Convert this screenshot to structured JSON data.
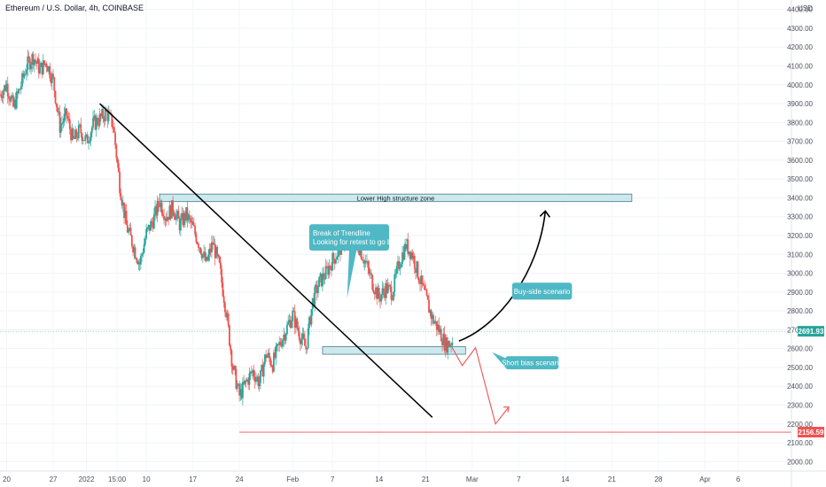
{
  "chart_data": {
    "type": "candlestick",
    "title": "Ethereum / U.S. Dollar, 4h, COINBASE",
    "currency_label": "USD",
    "ylim": [
      1950,
      4450
    ],
    "y_ticks": [
      2000,
      2100,
      2200,
      2300,
      2400,
      2500,
      2600,
      2700,
      2800,
      2900,
      3000,
      3100,
      3200,
      3300,
      3400,
      3500,
      3600,
      3700,
      3800,
      3900,
      4000,
      4100,
      4200,
      4300,
      4400
    ],
    "y_tick_labels": [
      "2000.00",
      "2100.00",
      "2200.00",
      "2300.00",
      "2400.00",
      "2500.00",
      "2600.00",
      "2700.00",
      "2800.00",
      "2900.00",
      "3000.00",
      "3100.00",
      "3200.00",
      "3300.00",
      "3400.00",
      "3500.00",
      "3600.00",
      "3700.00",
      "3800.00",
      "3900.00",
      "4000.00",
      "4100.00",
      "4200.00",
      "4300.00",
      "4400.00"
    ],
    "x_range_days": [
      -13,
      106
    ],
    "x_ticks": [
      {
        "day": -12,
        "label": "20"
      },
      {
        "day": -5,
        "label": "27"
      },
      {
        "day": 0,
        "label": "2022"
      },
      {
        "day": 4.6,
        "label": "15:00"
      },
      {
        "day": 9,
        "label": "10"
      },
      {
        "day": 16,
        "label": "17"
      },
      {
        "day": 23,
        "label": "24"
      },
      {
        "day": 31,
        "label": "Feb"
      },
      {
        "day": 37,
        "label": "7"
      },
      {
        "day": 44,
        "label": "14"
      },
      {
        "day": 51,
        "label": "21"
      },
      {
        "day": 58,
        "label": "Mar"
      },
      {
        "day": 65,
        "label": "7"
      },
      {
        "day": 72,
        "label": "14"
      },
      {
        "day": 79,
        "label": "21"
      },
      {
        "day": 86,
        "label": "28"
      },
      {
        "day": 93,
        "label": "Apr"
      },
      {
        "day": 98,
        "label": "6"
      }
    ],
    "price_path": [
      [
        -13,
        3950
      ],
      [
        -12,
        4000
      ],
      [
        -11,
        3880
      ],
      [
        -10,
        3980
      ],
      [
        -9,
        4100
      ],
      [
        -8,
        4150
      ],
      [
        -7,
        4080
      ],
      [
        -6,
        4120
      ],
      [
        -5,
        4020
      ],
      [
        -4,
        3780
      ],
      [
        -3,
        3840
      ],
      [
        -2,
        3700
      ],
      [
        -1,
        3760
      ],
      [
        0,
        3700
      ],
      [
        1,
        3790
      ],
      [
        2,
        3820
      ],
      [
        3,
        3850
      ],
      [
        4,
        3790
      ],
      [
        5,
        3470
      ],
      [
        6,
        3250
      ],
      [
        7,
        3150
      ],
      [
        8,
        3050
      ],
      [
        9,
        3210
      ],
      [
        10,
        3280
      ],
      [
        11,
        3380
      ],
      [
        12,
        3300
      ],
      [
        13,
        3350
      ],
      [
        14,
        3260
      ],
      [
        15,
        3310
      ],
      [
        16,
        3240
      ],
      [
        17,
        3150
      ],
      [
        18,
        3050
      ],
      [
        19,
        3160
      ],
      [
        20,
        3030
      ],
      [
        21,
        2800
      ],
      [
        22,
        2500
      ],
      [
        23,
        2350
      ],
      [
        24,
        2420
      ],
      [
        25,
        2480
      ],
      [
        26,
        2420
      ],
      [
        27,
        2570
      ],
      [
        28,
        2520
      ],
      [
        29,
        2620
      ],
      [
        30,
        2700
      ],
      [
        31,
        2780
      ],
      [
        32,
        2680
      ],
      [
        33,
        2600
      ],
      [
        34,
        2850
      ],
      [
        35,
        2950
      ],
      [
        36,
        3000
      ],
      [
        37,
        3070
      ],
      [
        38,
        3120
      ],
      [
        39,
        3200
      ],
      [
        40,
        3180
      ],
      [
        41,
        3140
      ],
      [
        42,
        3050
      ],
      [
        43,
        2950
      ],
      [
        44,
        2870
      ],
      [
        45,
        2920
      ],
      [
        46,
        2900
      ],
      [
        47,
        3050
      ],
      [
        48,
        3150
      ],
      [
        49,
        3100
      ],
      [
        50,
        2980
      ],
      [
        51,
        2870
      ],
      [
        52,
        2760
      ],
      [
        53,
        2700
      ],
      [
        54,
        2620
      ],
      [
        55,
        2640
      ]
    ],
    "extremes": {
      "low": {
        "day": 23,
        "price": 2160
      },
      "high": {
        "day": -8,
        "price": 4180
      }
    },
    "current_price": 2691.93,
    "current_price_label": "2691.93",
    "low_level_price": 2156.59,
    "low_level_label": "2156.59",
    "zones": [
      {
        "label": "Lower High structure zone",
        "x0": 11,
        "x1": 82,
        "y0": 3380,
        "y1": 3420
      },
      {
        "label": "",
        "x0": 35.5,
        "x1": 57,
        "y0": 2570,
        "y1": 2610
      }
    ],
    "trendline": {
      "x0": 2,
      "y0": 3900,
      "x1": 52,
      "y1": 2235
    },
    "annotations": [
      {
        "lines": [
          "Break of Trendline",
          "Looking for retest to go bullish"
        ],
        "x0": 33.5,
        "x1": 45.5,
        "y0": 3120,
        "y1": 3260,
        "tail": [
          [
            39.5,
            3120
          ],
          [
            39.2,
            2870
          ],
          [
            40.6,
            3120
          ]
        ]
      },
      {
        "lines": [
          "Buy-side scenario"
        ],
        "x0": 64,
        "x1": 73,
        "y0": 2860,
        "y1": 2950,
        "tail": []
      },
      {
        "lines": [
          "Short bias scenario"
        ],
        "x0": 63,
        "x1": 71,
        "y0": 2490,
        "y1": 2560,
        "tail": [
          [
            61,
            2580
          ],
          [
            63,
            2550
          ],
          [
            63,
            2500
          ]
        ]
      }
    ],
    "buy_side_curve": [
      [
        56,
        2640
      ],
      [
        62,
        2720
      ],
      [
        68,
        3000
      ],
      [
        69,
        3330
      ]
    ],
    "short_path": [
      [
        55,
        2605
      ],
      [
        56.5,
        2510
      ],
      [
        58.5,
        2605
      ],
      [
        61.5,
        2200
      ],
      [
        63.5,
        2290
      ]
    ]
  }
}
